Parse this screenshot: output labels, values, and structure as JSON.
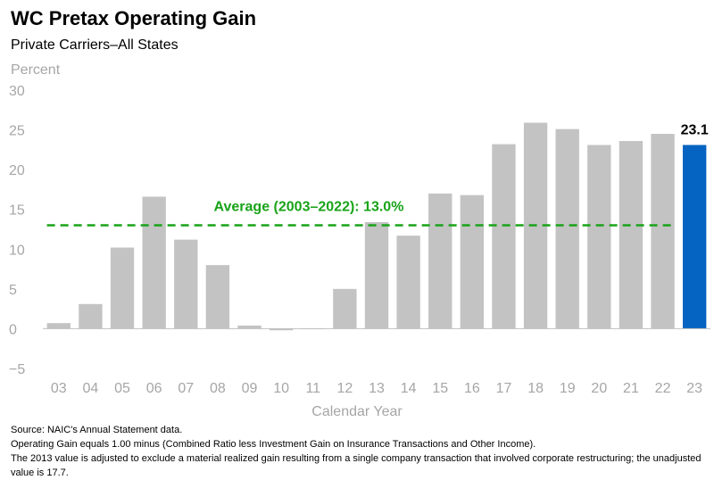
{
  "chart_data": {
    "type": "bar",
    "title": "WC Pretax Operating Gain",
    "subtitle": "Private Carriers–All States",
    "ylabel": "Percent",
    "xlabel": "Calendar Year",
    "ylim": [
      -5,
      30
    ],
    "yticks": [
      "30",
      "25",
      "20",
      "15",
      "10",
      "5",
      "0",
      "−5"
    ],
    "ytick_values": [
      30,
      25,
      20,
      15,
      10,
      5,
      0,
      -5
    ],
    "categories": [
      "03",
      "04",
      "05",
      "06",
      "07",
      "08",
      "09",
      "10",
      "11",
      "12",
      "13",
      "14",
      "15",
      "16",
      "17",
      "18",
      "19",
      "20",
      "21",
      "22",
      "23"
    ],
    "values": [
      0.7,
      3.1,
      10.2,
      16.6,
      11.2,
      8.0,
      0.4,
      -0.2,
      0.0,
      5.0,
      13.4,
      11.7,
      17.0,
      16.8,
      23.2,
      25.9,
      25.1,
      23.1,
      23.6,
      24.5,
      23.1
    ],
    "highlight_label": "23.1",
    "average": {
      "label": "Average (2003–2022): 13.0%",
      "value": 13.0
    },
    "colors": {
      "bar": "#c3c3c3",
      "highlight": "#0563c1",
      "average": "#19a319",
      "axis_text": "#a6a6a6"
    }
  },
  "notes": [
    "Source: NAIC's Annual Statement data.",
    "Operating Gain equals 1.00 minus (Combined Ratio less Investment Gain on Insurance Transactions and Other Income).",
    "The 2013 value is adjusted to exclude a material realized gain resulting from a single company transaction that involved corporate restructuring; the unadjusted value is 17.7."
  ]
}
